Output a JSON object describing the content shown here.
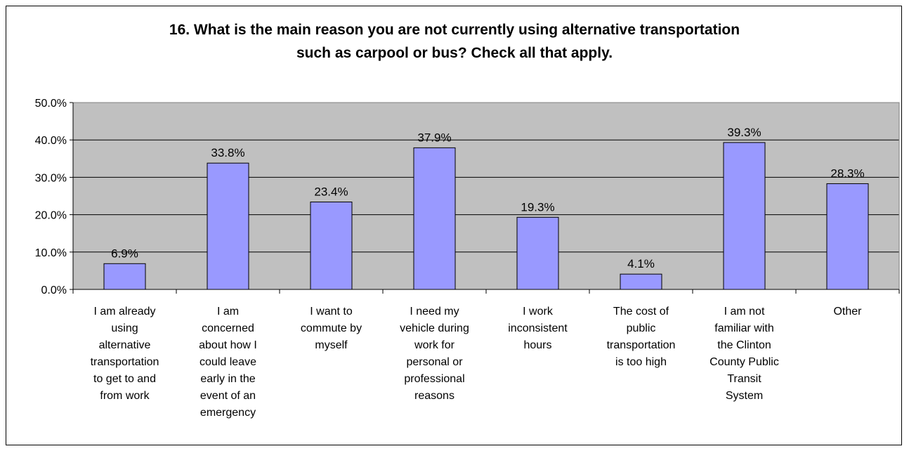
{
  "chart_data": {
    "type": "bar",
    "title_lines": [
      "16. What is the main reason you are not currently using alternative transportation",
      "such as carpool or bus?  Check all that apply."
    ],
    "categories": [
      [
        "I am already",
        "using",
        "alternative",
        "transportation",
        "to get to and",
        "from work"
      ],
      [
        "I am",
        "concerned",
        "about how I",
        "could leave",
        "early in the",
        "event of an",
        "emergency"
      ],
      [
        "I want to",
        "commute by",
        "myself"
      ],
      [
        "I need my",
        "vehicle during",
        "work for",
        "personal or",
        "professional",
        "reasons"
      ],
      [
        "I work",
        "inconsistent",
        "hours"
      ],
      [
        "The cost of",
        "public",
        "transportation",
        "is too high"
      ],
      [
        "I am not",
        "familiar with",
        "the Clinton",
        "County Public",
        "Transit",
        "System"
      ],
      [
        "Other"
      ]
    ],
    "values": [
      6.9,
      33.8,
      23.4,
      37.9,
      19.3,
      4.1,
      39.3,
      28.3
    ],
    "data_labels": [
      "6.9%",
      "33.8%",
      "23.4%",
      "37.9%",
      "19.3%",
      "4.1%",
      "39.3%",
      "28.3%"
    ],
    "ylim": [
      0,
      50
    ],
    "yticks": [
      0,
      10,
      20,
      30,
      40,
      50
    ],
    "ytick_labels": [
      "0.0%",
      "10.0%",
      "20.0%",
      "30.0%",
      "40.0%",
      "50.0%"
    ],
    "grid": true,
    "legend": "none",
    "colors": {
      "plot_background": "#c0c0c0",
      "bar_fill": "#9999ff",
      "bar_stroke": "#000000",
      "gridline": "#000000"
    }
  }
}
